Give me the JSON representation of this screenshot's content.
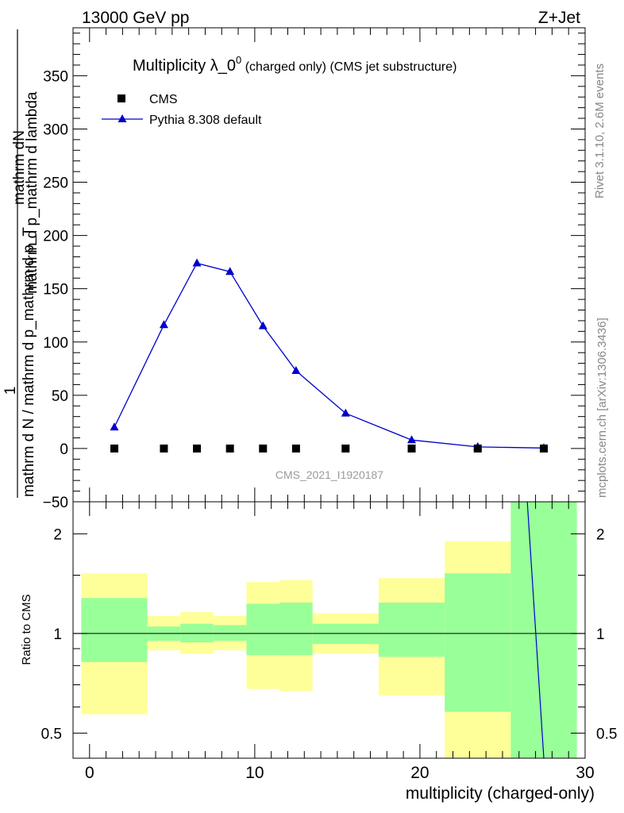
{
  "header": {
    "left": "13000 GeV pp",
    "right": "Z+Jet"
  },
  "side_labels": {
    "rivet": "Rivet 3.1.10,  2.6M events",
    "mcplots": "mcplots.cern.ch [arXiv:1306.3436]"
  },
  "chart_data": [
    {
      "type": "line",
      "panel": "main",
      "title_main": "Multiplicity λ_0",
      "title_sup": "0",
      "title_sub": " (charged only) (CMS jet substructure)",
      "ylabel_top": "mathrm dN",
      "ylabel_top2": "mathrm d p_mathrm d lambda",
      "ylabel_one": "1",
      "ylabel_bottom": "mathrm d N / mathrm d p_mathrm d p_T",
      "watermark": "CMS_2021_I1920187",
      "xlim": [
        -1,
        30
      ],
      "ylim": [
        -50,
        395
      ],
      "yticks": [
        -50,
        0,
        50,
        100,
        150,
        200,
        250,
        300,
        350
      ],
      "ytick_labels": [
        "−50",
        "0",
        "50",
        "100",
        "150",
        "200",
        "250",
        "300",
        "350"
      ],
      "legend_position": "top-left",
      "series": [
        {
          "name": "CMS",
          "marker": "square",
          "color": "#000000",
          "x": [
            1.5,
            4.5,
            6.5,
            8.5,
            10.5,
            12.5,
            15.5,
            19.5,
            23.5,
            27.5
          ],
          "y": [
            0,
            0,
            0,
            0,
            0,
            0,
            0,
            0,
            0,
            0
          ]
        },
        {
          "name": "Pythia 8.308 default",
          "marker": "triangle",
          "color": "#0000cc",
          "x": [
            1.5,
            4.5,
            6.5,
            8.5,
            10.5,
            12.5,
            15.5,
            19.5,
            23.5,
            27.5
          ],
          "y": [
            20,
            116,
            174,
            166,
            115,
            73,
            33,
            8,
            1.5,
            0.5
          ]
        }
      ]
    },
    {
      "type": "bar",
      "panel": "ratio",
      "ylabel": "Ratio to CMS",
      "xlabel": "multiplicity (charged-only)",
      "xlim": [
        -1,
        30
      ],
      "ylim": [
        0.42,
        2.5
      ],
      "log_y": true,
      "yticks": [
        0.5,
        1,
        2
      ],
      "ytick_labels": [
        "0.5",
        "1",
        "2"
      ],
      "xticks": [
        0,
        10,
        20,
        30
      ],
      "xtick_labels": [
        "0",
        "10",
        "20",
        "30"
      ],
      "reference_line": 1,
      "bands": [
        {
          "x0": -0.5,
          "x1": 3.5,
          "inner": [
            0.82,
            1.28
          ],
          "outer": [
            0.57,
            1.52
          ]
        },
        {
          "x0": 3.5,
          "x1": 5.5,
          "inner": [
            0.95,
            1.05
          ],
          "outer": [
            0.89,
            1.13
          ]
        },
        {
          "x0": 5.5,
          "x1": 7.5,
          "inner": [
            0.94,
            1.07
          ],
          "outer": [
            0.87,
            1.16
          ]
        },
        {
          "x0": 7.5,
          "x1": 9.5,
          "inner": [
            0.95,
            1.06
          ],
          "outer": [
            0.89,
            1.13
          ]
        },
        {
          "x0": 9.5,
          "x1": 11.5,
          "inner": [
            0.86,
            1.23
          ],
          "outer": [
            0.68,
            1.43
          ]
        },
        {
          "x0": 11.5,
          "x1": 13.5,
          "inner": [
            0.86,
            1.24
          ],
          "outer": [
            0.67,
            1.45
          ]
        },
        {
          "x0": 13.5,
          "x1": 17.5,
          "inner": [
            0.93,
            1.07
          ],
          "outer": [
            0.87,
            1.15
          ]
        },
        {
          "x0": 17.5,
          "x1": 21.5,
          "inner": [
            0.85,
            1.24
          ],
          "outer": [
            0.65,
            1.47
          ]
        },
        {
          "x0": 21.5,
          "x1": 25.5,
          "inner": [
            0.58,
            1.52
          ],
          "outer": [
            0.42,
            1.9
          ]
        },
        {
          "x0": 25.5,
          "x1": 29.5,
          "inner": [
            0.42,
            2.5
          ],
          "outer": [
            0.42,
            2.5
          ]
        }
      ],
      "pythia_line": {
        "name": "Pythia 8.308 default",
        "color": "#0000cc",
        "x": [
          26.5,
          27.5
        ],
        "y": [
          2.5,
          0.42
        ]
      }
    }
  ],
  "colors": {
    "band_inner": "#99ff99",
    "band_outer": "#ffff99",
    "pythia": "#0000cc",
    "cms": "#000000"
  }
}
